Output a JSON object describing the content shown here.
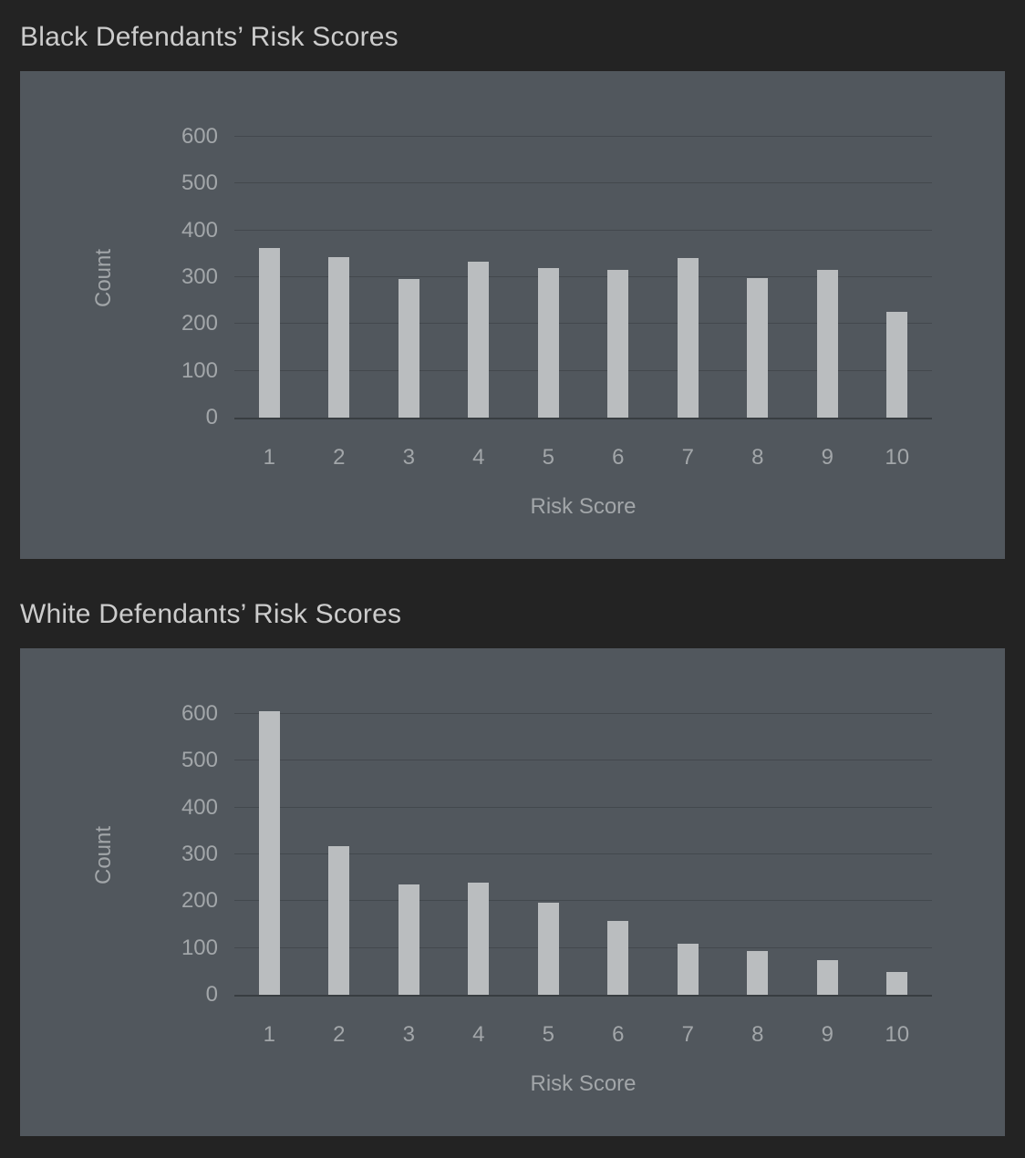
{
  "colors": {
    "page_bg": "#232323",
    "panel_bg": "#51575d",
    "bar": "#babdbf",
    "grid": "#43484d",
    "axis": "#383d41",
    "tick_text": "#a2a6a9",
    "title_text": "#cccccc"
  },
  "chart_data": [
    {
      "type": "bar",
      "title": "Black Defendants’ Risk Scores",
      "xlabel": "Risk Score",
      "ylabel": "Count",
      "categories": [
        "1",
        "2",
        "3",
        "4",
        "5",
        "6",
        "7",
        "8",
        "9",
        "10"
      ],
      "values": [
        363,
        343,
        296,
        333,
        320,
        315,
        340,
        298,
        316,
        226
      ],
      "ylim": [
        0,
        600
      ],
      "yticks": [
        0,
        100,
        200,
        300,
        400,
        500,
        600
      ],
      "grid": true,
      "legend": "none"
    },
    {
      "type": "bar",
      "title": "White Defendants’ Risk Scores",
      "xlabel": "Risk Score",
      "ylabel": "Count",
      "categories": [
        "1",
        "2",
        "3",
        "4",
        "5",
        "6",
        "7",
        "8",
        "9",
        "10"
      ],
      "values": [
        605,
        318,
        236,
        240,
        197,
        157,
        110,
        93,
        75,
        48
      ],
      "ylim": [
        0,
        600
      ],
      "yticks": [
        0,
        100,
        200,
        300,
        400,
        500,
        600
      ],
      "grid": true,
      "legend": "none"
    }
  ]
}
